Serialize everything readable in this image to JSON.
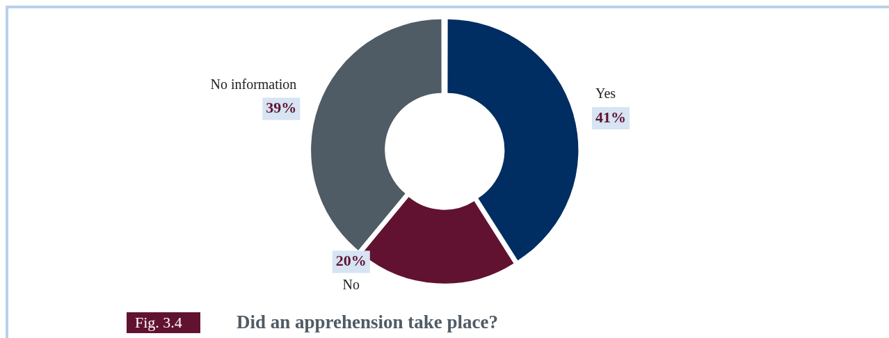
{
  "chart_data": {
    "type": "donut",
    "title": "Did an apprehension take place?",
    "annotations": [
      "Fig. 3.4"
    ],
    "categories": [
      "Yes",
      "No",
      "No information"
    ],
    "values": [
      41,
      20,
      39
    ],
    "colors": [
      "#002d62",
      "#611230",
      "#4f5b65"
    ],
    "value_labels": [
      "41%",
      "20%",
      "39%"
    ],
    "legend": false
  }
}
